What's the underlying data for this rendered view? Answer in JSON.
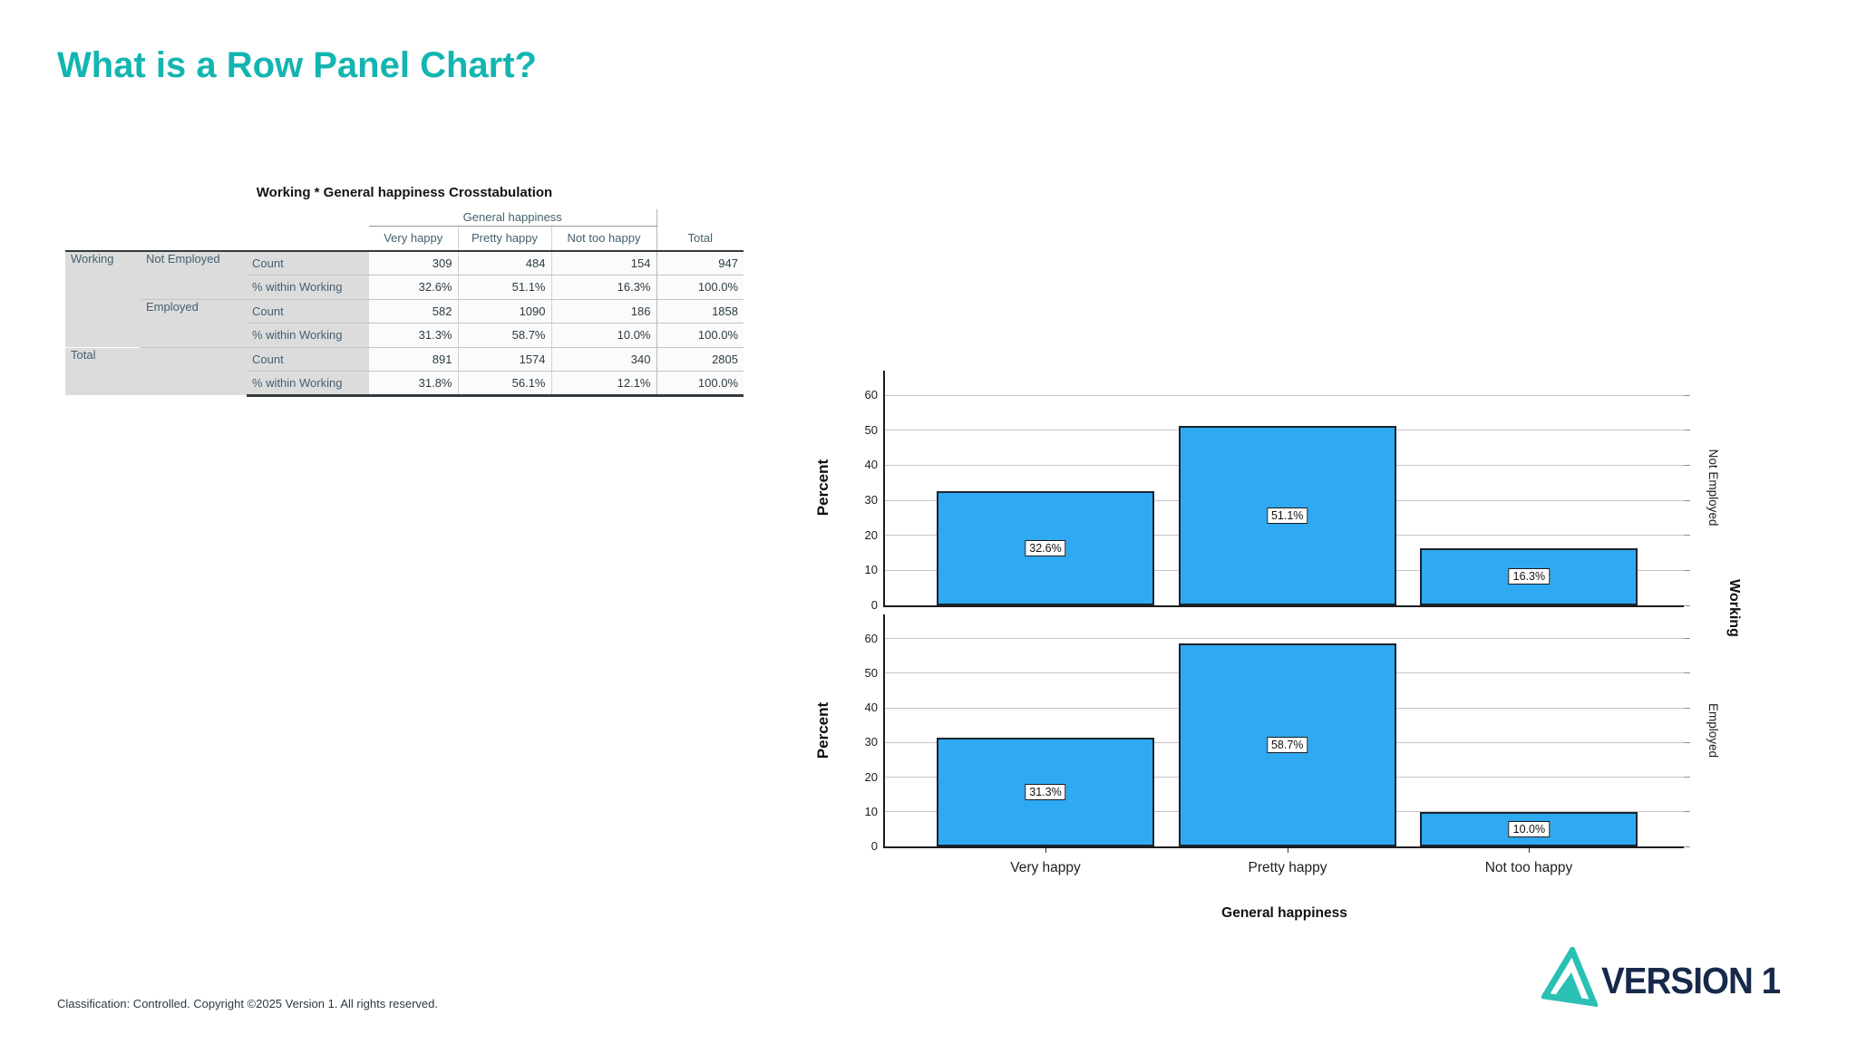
{
  "slide": {
    "title": "What is a Row Panel Chart?",
    "title_color": "#13b5b1",
    "footer": "Classification: Controlled. Copyright ©2025 Version 1. All rights reserved.",
    "logo_text": "VERSION 1",
    "logo_teal": "#2bc0b4",
    "logo_navy": "#16294a"
  },
  "table": {
    "title": "Working * General happiness Crosstabulation",
    "col_group": "General happiness",
    "col_headers": [
      "Very happy",
      "Pretty happy",
      "Not too happy",
      "Total"
    ],
    "rows": [
      {
        "stub1": "Working",
        "stub2": "Not Employed",
        "stub3": "Count",
        "values": [
          "309",
          "484",
          "154",
          "947"
        ]
      },
      {
        "stub3": "% within Working",
        "values": [
          "32.6%",
          "51.1%",
          "16.3%",
          "100.0%"
        ]
      },
      {
        "stub2": "Employed",
        "stub3": "Count",
        "values": [
          "582",
          "1090",
          "186",
          "1858"
        ]
      },
      {
        "stub3": "% within Working",
        "values": [
          "31.3%",
          "58.7%",
          "10.0%",
          "100.0%"
        ]
      },
      {
        "stub1": "Total",
        "stub3": "Count",
        "values": [
          "891",
          "1574",
          "340",
          "2805"
        ]
      },
      {
        "stub3": "% within Working",
        "values": [
          "31.8%",
          "56.1%",
          "12.1%",
          "100.0%"
        ]
      }
    ]
  },
  "chart_data": {
    "type": "bar",
    "title": "",
    "categories": [
      "Very happy",
      "Pretty happy",
      "Not too happy"
    ],
    "xlabel": "General happiness",
    "ylabel": "Percent",
    "panel_variable": "Working",
    "panel_position": "right-rows",
    "ylim": [
      0,
      67
    ],
    "yticks": [
      0,
      10,
      20,
      30,
      40,
      50,
      60
    ],
    "grid": true,
    "legend": "none",
    "bar_color": "#2fa9f1",
    "series": [
      {
        "name": "Not Employed",
        "values": [
          32.6,
          51.1,
          16.3
        ],
        "labels": [
          "32.6%",
          "51.1%",
          "16.3%"
        ]
      },
      {
        "name": "Employed",
        "values": [
          31.3,
          58.7,
          10.0
        ],
        "labels": [
          "31.3%",
          "58.7%",
          "10.0%"
        ]
      }
    ]
  }
}
